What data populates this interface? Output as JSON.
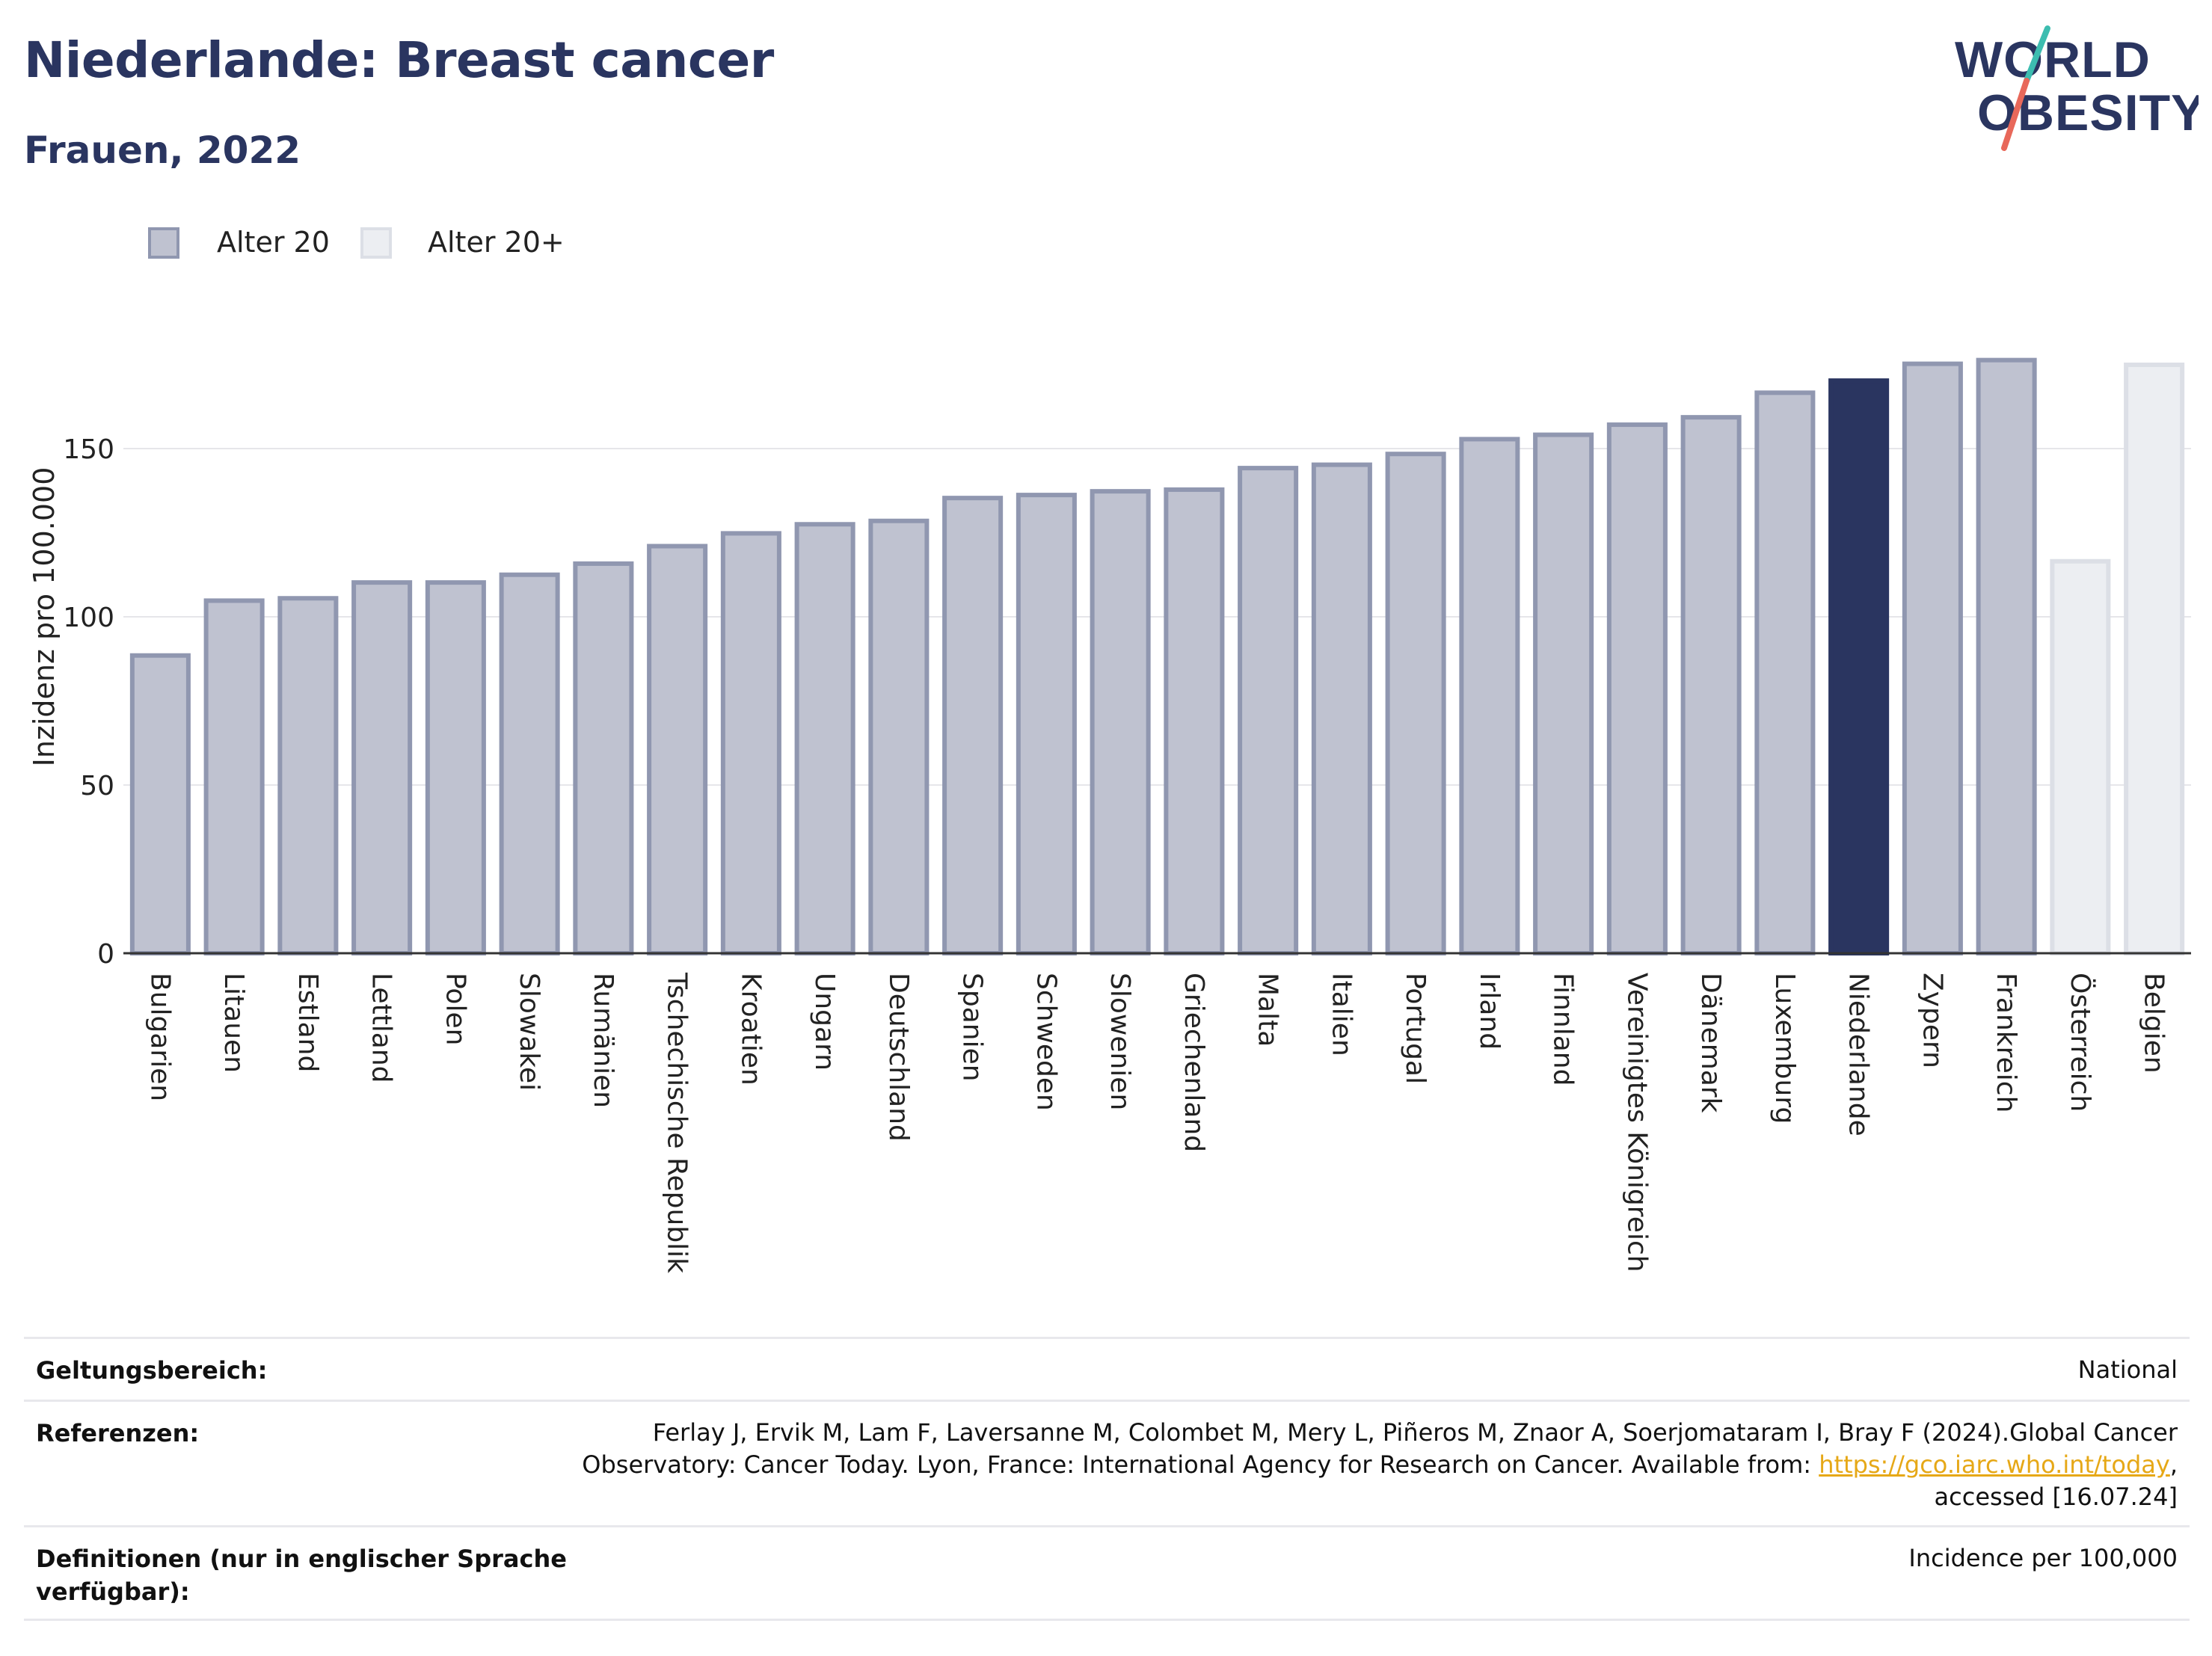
{
  "header": {
    "title": "Niederlande: Breast cancer",
    "subtitle": "Frauen, 2022"
  },
  "logo": {
    "line1": "WORLD",
    "line2": "OBESITY",
    "colors": {
      "text": "#2a3560",
      "slash_teal": "#3dbdb0",
      "slash_coral": "#e8685a"
    }
  },
  "legend": {
    "items": [
      {
        "label": "Alter 20",
        "color": "#bfc2d0",
        "border": "#9097b0"
      },
      {
        "label": "Alter 20+",
        "color": "#eceef2",
        "border": "#dcdfe6"
      }
    ]
  },
  "colors": {
    "age20": "#bfc2d0",
    "age20_border": "#9097b0",
    "age20plus": "#eceef2",
    "age20plus_border": "#dcdfe6",
    "highlight": "#2a3560",
    "grid": "#e6e6ea"
  },
  "chart_data": {
    "type": "bar",
    "ylabel": "Inzidenz pro 100.000",
    "xlabel": "",
    "ylim": [
      0,
      200
    ],
    "yticks": [
      0,
      50,
      100,
      150
    ],
    "grid": true,
    "legend_position": "top-left",
    "highlight_category": "Niederlande",
    "categories": [
      "Bulgarien",
      "Litauen",
      "Estland",
      "Lettland",
      "Polen",
      "Slowakei",
      "Rumänien",
      "Tschechische Republik",
      "Kroatien",
      "Ungarn",
      "Deutschland",
      "Spanien",
      "Schweden",
      "Slowenien",
      "Griechenland",
      "Malta",
      "Italien",
      "Portugal",
      "Irland",
      "Finnland",
      "Vereinigtes Königreich",
      "Dänemark",
      "Luxemburg",
      "Niederlande",
      "Zypern",
      "Frankreich",
      "Österreich",
      "Belgien"
    ],
    "values": [
      88.5,
      104.8,
      105.5,
      110.2,
      110.2,
      112.5,
      115.8,
      121.0,
      124.8,
      127.5,
      128.5,
      135.3,
      136.2,
      137.3,
      137.8,
      144.2,
      145.2,
      148.4,
      152.8,
      154.1,
      157.1,
      159.3,
      166.6,
      170.2,
      175.2,
      176.3,
      116.5,
      174.9
    ],
    "series_group": [
      "Alter 20",
      "Alter 20",
      "Alter 20",
      "Alter 20",
      "Alter 20",
      "Alter 20",
      "Alter 20",
      "Alter 20",
      "Alter 20",
      "Alter 20",
      "Alter 20",
      "Alter 20",
      "Alter 20",
      "Alter 20",
      "Alter 20",
      "Alter 20",
      "Alter 20",
      "Alter 20",
      "Alter 20",
      "Alter 20",
      "Alter 20",
      "Alter 20",
      "Alter 20",
      "Alter 20",
      "Alter 20",
      "Alter 20",
      "Alter 20+",
      "Alter 20+"
    ]
  },
  "footer": {
    "rows": [
      {
        "label": "Geltungsbereich:",
        "value_lines": [
          "National"
        ]
      },
      {
        "label": "Referenzen:",
        "value_lines": [
          "Ferlay J, Ervik M, Lam F, Laversanne M, Colombet M, Mery L, Piñeros M, Znaor A, Soerjomataram I, Bray F (2024).Global Cancer",
          "Observatory: Cancer Today. Lyon, France: International Agency for Research on Cancer. Available from: ",
          "accessed [16.07.24]"
        ],
        "link_text": "https://gco.iarc.who.int/today",
        "link_suffix": ","
      },
      {
        "label_lines": [
          "Definitionen (nur in englischer Sprache",
          "verfügbar):"
        ],
        "value_lines": [
          "Incidence per 100,000"
        ]
      }
    ]
  }
}
